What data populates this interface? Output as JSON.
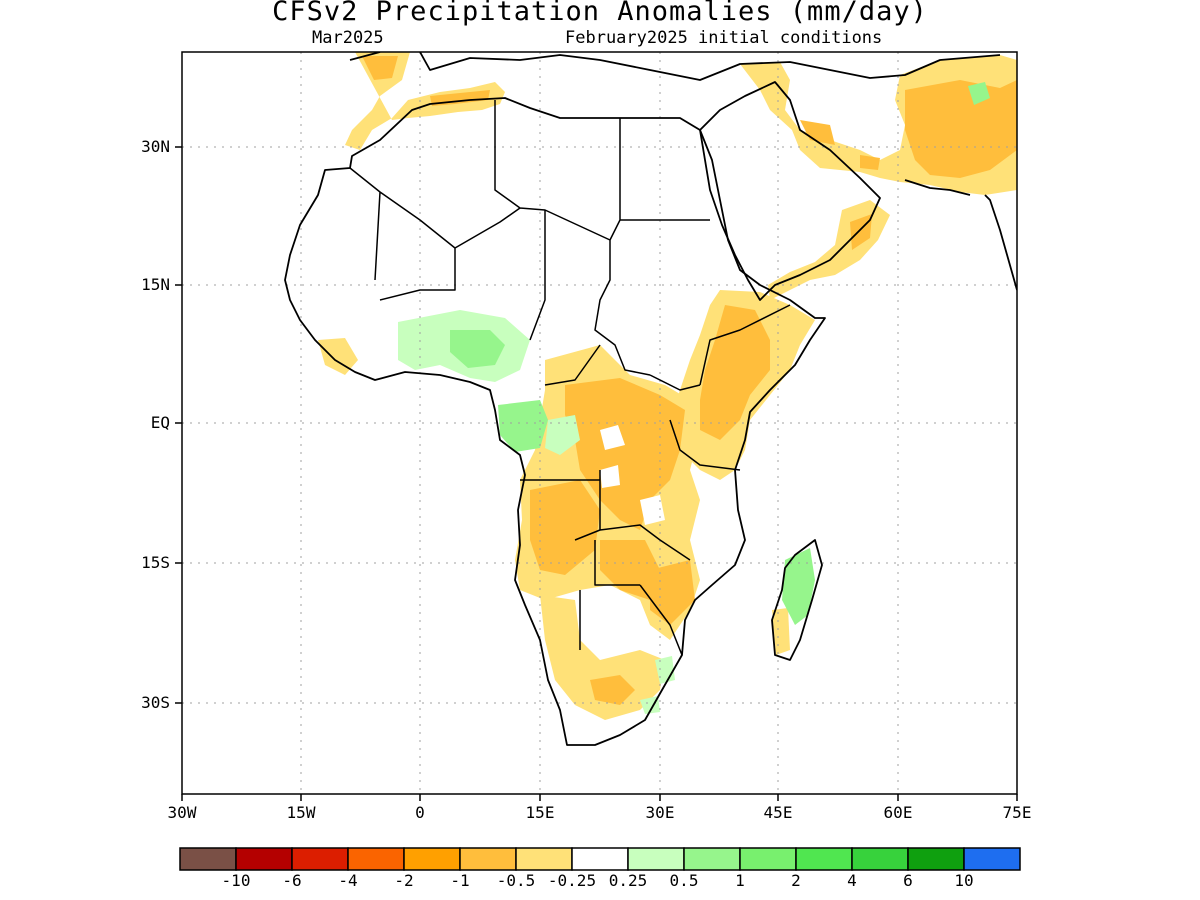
{
  "header": {
    "title": "CFSv2 Precipitation Anomalies (mm/day)",
    "month": "Mar2025",
    "initial_conditions": "February2025 initial conditions"
  },
  "map": {
    "lon_range": [
      -30,
      75
    ],
    "lat_range": [
      -40,
      40
    ],
    "y_axis_labels": [
      "30N",
      "15N",
      "EQ",
      "15S",
      "30S"
    ],
    "x_axis_labels": [
      "30W",
      "15W",
      "0",
      "15E",
      "30E",
      "45E",
      "60E",
      "75E"
    ],
    "gridlines": "dotted"
  },
  "colorbar": {
    "colors": [
      "#7a5046",
      "#b40000",
      "#dc1e00",
      "#fa6400",
      "#ffa000",
      "#ffbe3c",
      "#ffe178",
      "#ffffff",
      "#c8ffbe",
      "#96f58c",
      "#78f06e",
      "#50e650",
      "#37d23c",
      "#0fa00f",
      "#1e6ef0"
    ],
    "labels": [
      "-10",
      "-6",
      "-4",
      "-2",
      "-1",
      "-0.5",
      "-0.25",
      "0.25",
      "0.5",
      "1",
      "2",
      "4",
      "6",
      "10"
    ]
  }
}
